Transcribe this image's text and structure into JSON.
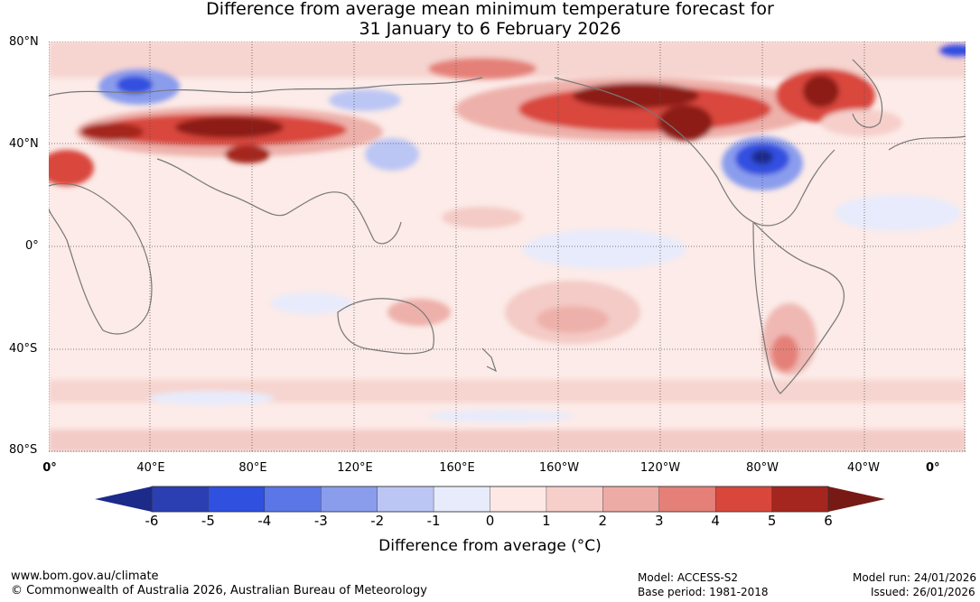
{
  "title": {
    "line1": "Difference from average mean minimum temperature forecast for",
    "line2": "31 January to 6 February 2026"
  },
  "map": {
    "lat_labels": [
      "80°N",
      "40°N",
      "0°",
      "40°S",
      "80°S"
    ],
    "lon_labels": [
      "0°",
      "40°E",
      "80°E",
      "120°E",
      "160°E",
      "160°W",
      "120°W",
      "80°W",
      "40°W",
      "0°"
    ],
    "anomaly_colors": {
      "strong_warm": "#7a1714",
      "warm": "#c73c2e",
      "mild_warm": "#eeb0aa",
      "slight_warm": "#fbe9e7",
      "slight_cool": "#e9ecfb",
      "cool": "#8c9cea",
      "strong_cool": "#2e49c9",
      "coastline": "#777777"
    }
  },
  "colorbar": {
    "ticks": [
      "-6",
      "-5",
      "-4",
      "-3",
      "-2",
      "-1",
      "0",
      "1",
      "2",
      "3",
      "4",
      "5",
      "6"
    ],
    "colors": [
      "#1c2a8a",
      "#2b3fb3",
      "#3050e0",
      "#5b76e6",
      "#8a9cec",
      "#bcc6f4",
      "#e8ebfc",
      "#fde8e6",
      "#f6cfcb",
      "#edaba6",
      "#e48078",
      "#d9473c",
      "#a5261e",
      "#771a15"
    ],
    "label": "Difference from average (°C)"
  },
  "footer": {
    "website": "www.bom.gov.au/climate",
    "copyright": "© Commonwealth of Australia 2026, Australian Bureau of Meteorology",
    "model": "Model: ACCESS-S2",
    "base_period": "Base period: 1981-2018",
    "model_run": "Model run: 24/01/2026",
    "issued": "Issued: 26/01/2026"
  }
}
